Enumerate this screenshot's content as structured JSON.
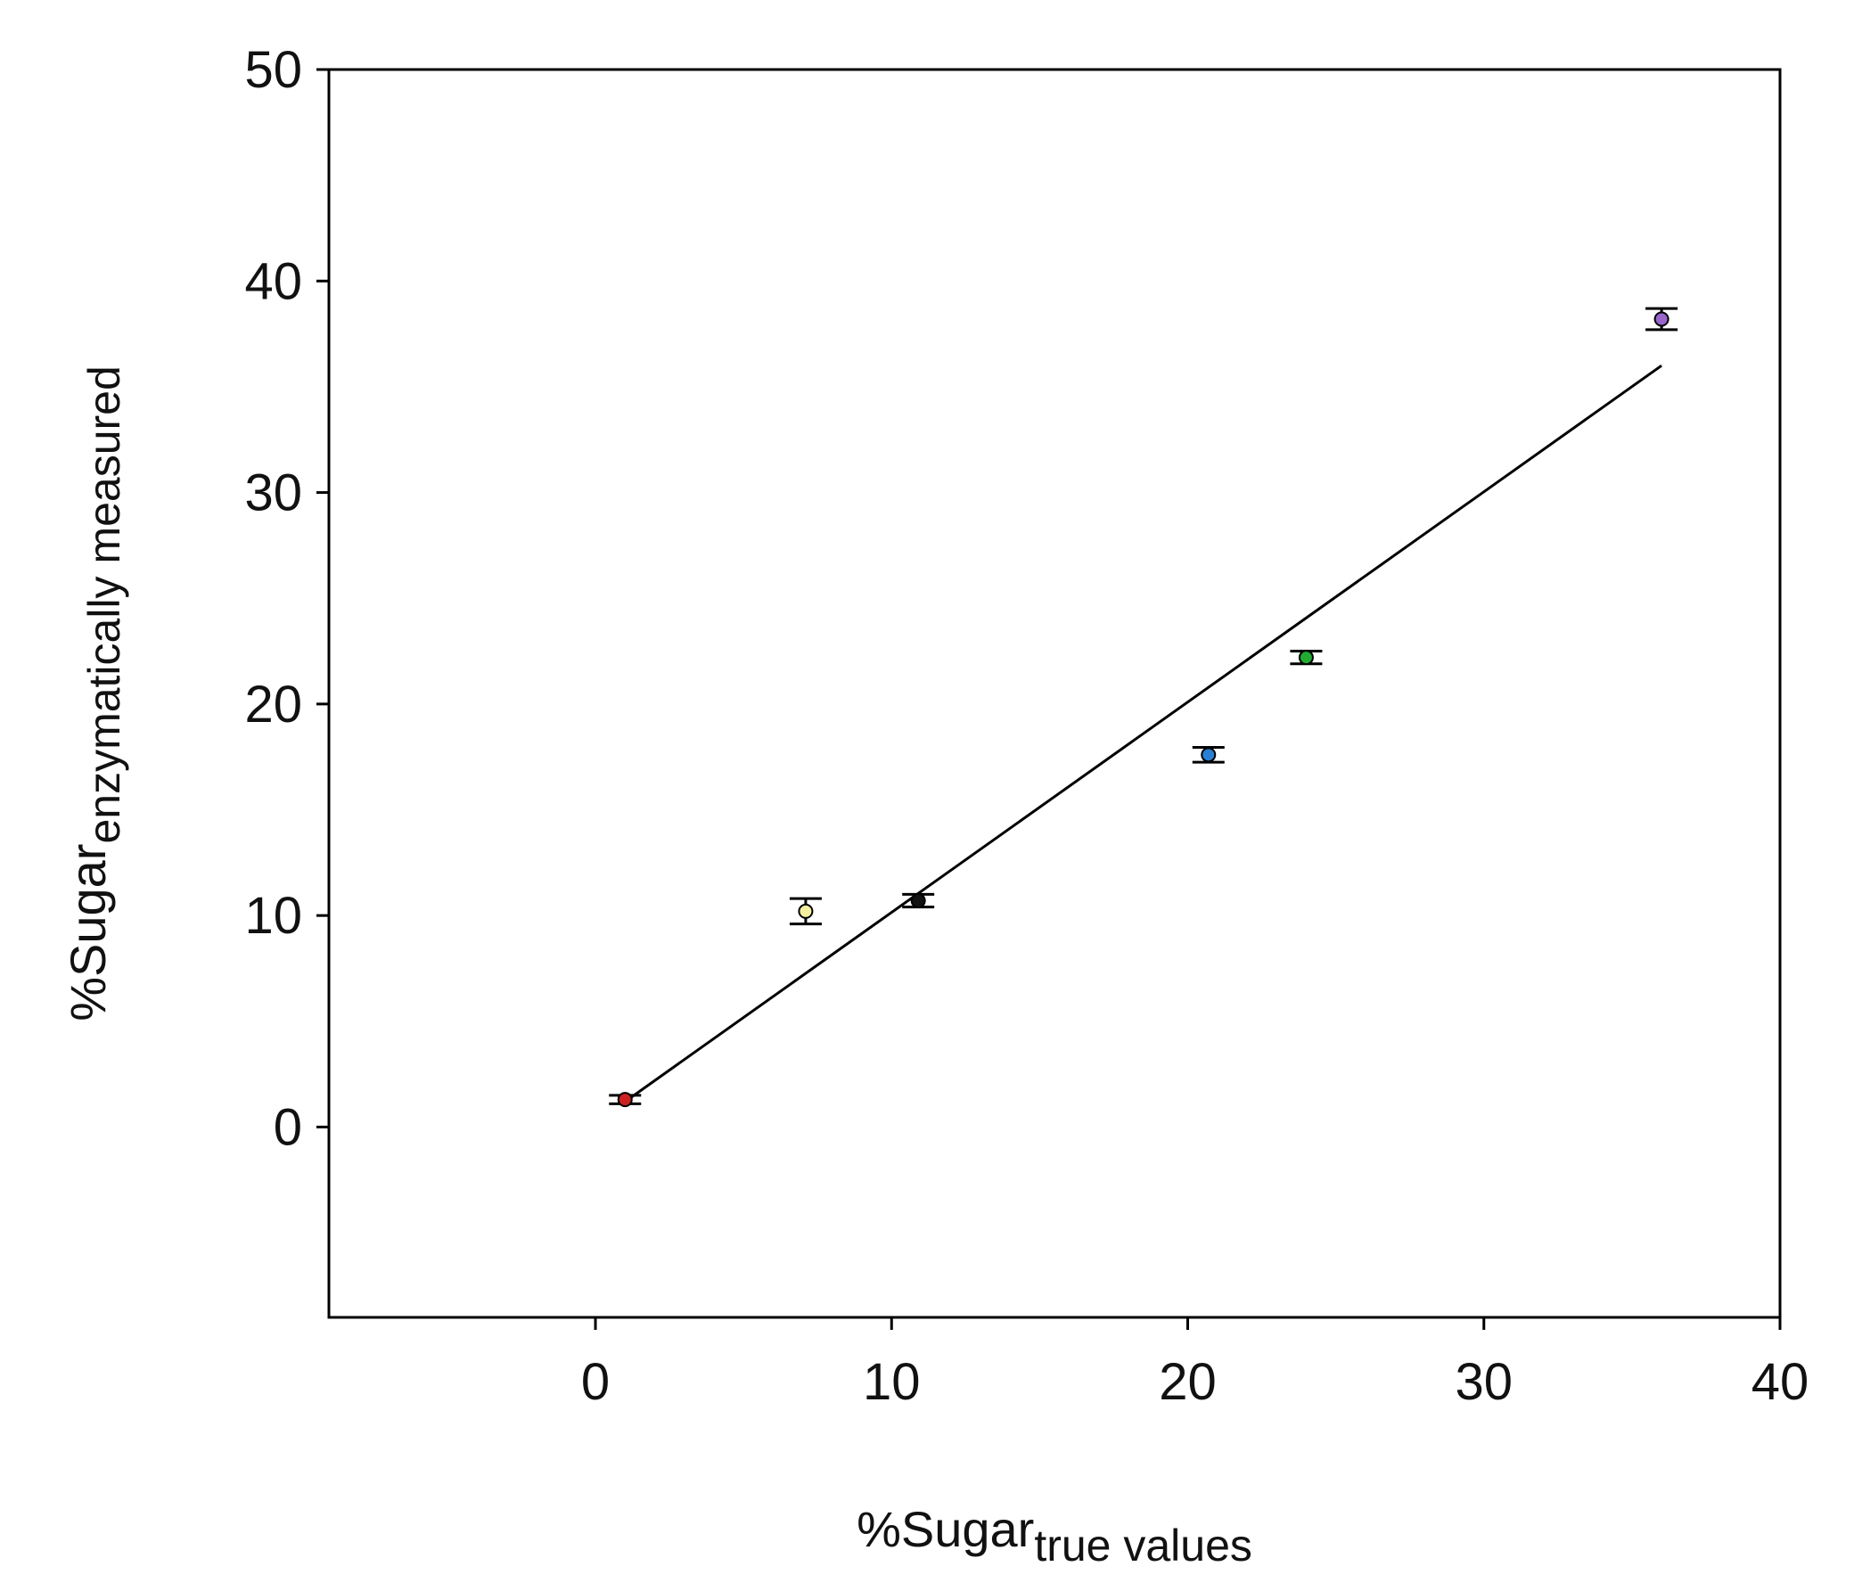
{
  "chart_data": {
    "type": "scatter",
    "xlabel": {
      "main": "%Sugar",
      "subscript": "true values"
    },
    "ylabel": {
      "main": "%Sugar",
      "subscript": "enzymatically measured"
    },
    "xlim": [
      -9,
      40
    ],
    "ylim": [
      -9,
      50
    ],
    "xticks": [
      0,
      10,
      20,
      30,
      40
    ],
    "yticks": [
      0,
      10,
      20,
      30,
      40,
      50
    ],
    "grid": false,
    "legend": "none",
    "points": [
      {
        "x": 1.0,
        "y": 1.3,
        "err": 0.2,
        "color": "#cc2222"
      },
      {
        "x": 7.1,
        "y": 10.2,
        "err": 0.6,
        "color": "#f4f0a0"
      },
      {
        "x": 10.9,
        "y": 10.7,
        "err": 0.3,
        "color": "#111111"
      },
      {
        "x": 20.7,
        "y": 17.6,
        "err": 0.35,
        "color": "#2a7fd4"
      },
      {
        "x": 24.0,
        "y": 22.2,
        "err": 0.3,
        "color": "#22aa33"
      },
      {
        "x": 36.0,
        "y": 38.2,
        "err": 0.5,
        "color": "#9966cc"
      }
    ],
    "fit_line": {
      "x": [
        1.0,
        36.0
      ],
      "y": [
        1.2,
        36.0
      ],
      "color": "#000000"
    }
  }
}
